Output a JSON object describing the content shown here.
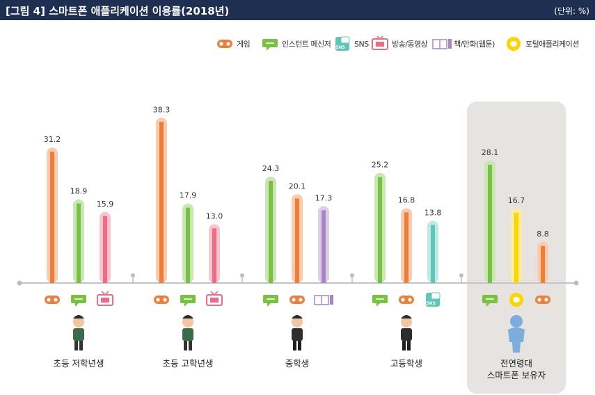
{
  "header": {
    "title": "[그림 4]  스마트폰 애플리케이션 이용률(2018년)",
    "unit": "(단위: %)"
  },
  "legend": [
    {
      "key": "game",
      "label": "게임",
      "icon": "gamepad-icon",
      "color": "#f07e38"
    },
    {
      "key": "messenger",
      "label": "인스턴트 메신저",
      "icon": "speech-bubble-icon",
      "color": "#7ac143"
    },
    {
      "key": "sns",
      "label": "SNS",
      "icon": "sns-icon",
      "color": "#5ec8b8"
    },
    {
      "key": "video",
      "label": "방송/동영상",
      "icon": "tv-icon",
      "color": "#ef6b85"
    },
    {
      "key": "book",
      "label": "책/만화(웹툰)",
      "icon": "book-icon",
      "color": "#a985c5"
    },
    {
      "key": "portal",
      "label": "포털애플리케이션",
      "icon": "portal-icon",
      "color": "#ffd400"
    }
  ],
  "colors": {
    "game": "#f07e38",
    "messenger": "#7ac143",
    "sns": "#5ec8b8",
    "video": "#ef6b85",
    "book": "#a985c5",
    "portal": "#ffd400"
  },
  "chart_data": {
    "type": "bar",
    "ylim": [
      0,
      40
    ],
    "groups": [
      {
        "label": "초등 저학년생",
        "figure": "child-figure-icon",
        "bars": [
          {
            "series": "game",
            "value": 31.2
          },
          {
            "series": "messenger",
            "value": 18.9
          },
          {
            "series": "video",
            "value": 15.9
          }
        ]
      },
      {
        "label": "초등 고학년생",
        "figure": "child-figure-icon",
        "bars": [
          {
            "series": "game",
            "value": 38.3
          },
          {
            "series": "messenger",
            "value": 17.9
          },
          {
            "series": "video",
            "value": 13.0
          }
        ]
      },
      {
        "label": "중학생",
        "figure": "student-figure-icon",
        "bars": [
          {
            "series": "messenger",
            "value": 24.3
          },
          {
            "series": "game",
            "value": 20.1
          },
          {
            "series": "book",
            "value": 17.3
          }
        ]
      },
      {
        "label": "고등학생",
        "figure": "student-figure-icon",
        "bars": [
          {
            "series": "messenger",
            "value": 25.2
          },
          {
            "series": "game",
            "value": 16.8
          },
          {
            "series": "sns",
            "value": 13.8
          }
        ]
      },
      {
        "label": "전연령대\n스마트폰 보유자",
        "figure": "person-silhouette-icon",
        "highlight": true,
        "bars": [
          {
            "series": "messenger",
            "value": 28.1
          },
          {
            "series": "portal",
            "value": 16.7
          },
          {
            "series": "game",
            "value": 8.8
          }
        ]
      }
    ]
  }
}
